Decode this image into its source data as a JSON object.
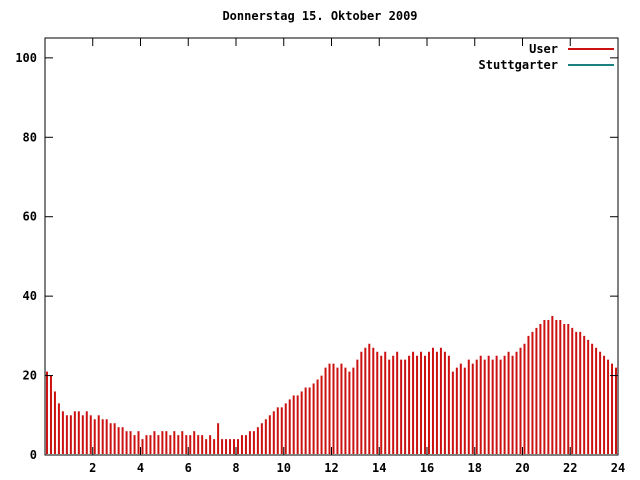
{
  "chart_data": {
    "type": "bar",
    "title": "Donnerstag 15. Oktober 2009",
    "xlabel": "",
    "ylabel": "",
    "xlim": [
      0,
      24
    ],
    "ylim": [
      0,
      105
    ],
    "x_ticks": [
      2,
      4,
      6,
      8,
      10,
      12,
      14,
      16,
      18,
      20,
      22,
      24
    ],
    "y_ticks": [
      0,
      20,
      40,
      60,
      80,
      100
    ],
    "grid": false,
    "legend_position": "top-right",
    "sample_interval_minutes": 10,
    "x_start_hour": 0,
    "series": [
      {
        "name": "User",
        "color": "#cc1111",
        "style": "impulses",
        "values": [
          21,
          20,
          16,
          13,
          11,
          10,
          10,
          11,
          11,
          10,
          11,
          10,
          9,
          10,
          9,
          9,
          8,
          8,
          7,
          7,
          6,
          6,
          5,
          6,
          4,
          5,
          5,
          6,
          5,
          6,
          6,
          5,
          6,
          5,
          6,
          5,
          5,
          6,
          5,
          5,
          4,
          5,
          4,
          8,
          4,
          4,
          4,
          4,
          4,
          5,
          5,
          6,
          6,
          7,
          8,
          9,
          10,
          11,
          12,
          12,
          13,
          14,
          15,
          15,
          16,
          17,
          17,
          18,
          19,
          20,
          22,
          23,
          23,
          22,
          23,
          22,
          21,
          22,
          24,
          26,
          27,
          28,
          27,
          26,
          25,
          26,
          24,
          25,
          26,
          24,
          24,
          25,
          26,
          25,
          26,
          25,
          26,
          27,
          26,
          27,
          26,
          25,
          21,
          22,
          23,
          22,
          24,
          23,
          24,
          25,
          24,
          25,
          24,
          25,
          24,
          25,
          26,
          25,
          26,
          27,
          28,
          30,
          31,
          32,
          33,
          34,
          34,
          35,
          34,
          34,
          33,
          33,
          32,
          31,
          31,
          30,
          29,
          28,
          27,
          26,
          25,
          24,
          23,
          22
        ]
      },
      {
        "name": "Stuttgarter",
        "color": "#1a8080",
        "style": "line",
        "values": [],
        "visible_in_plot": false
      }
    ]
  }
}
